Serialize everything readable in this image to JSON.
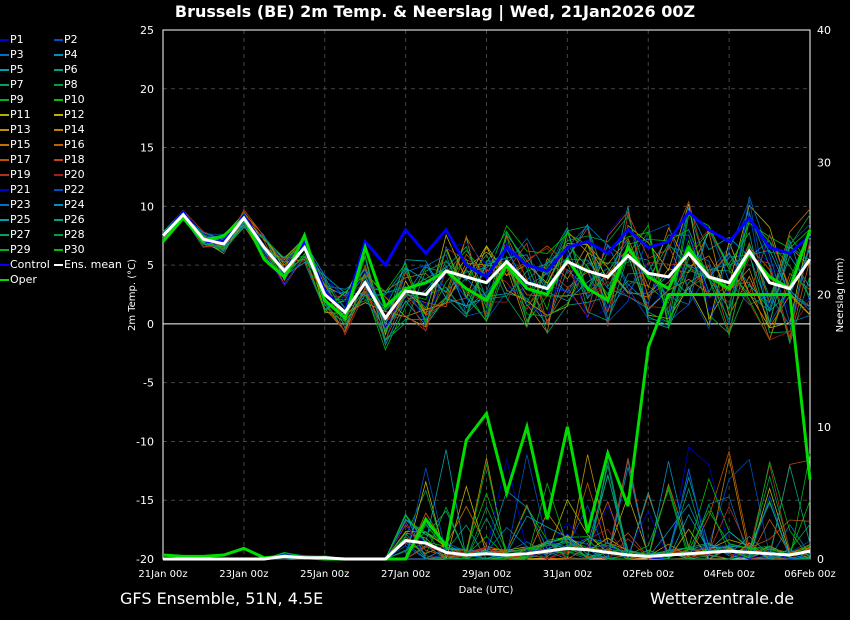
{
  "title": "Brussels  (BE)  2m Temp. & Neerslag | Wed, 21Jan2026 00Z",
  "source": "GFS Ensemble, 51N, 4.5E",
  "brand": "Wetterzentrale.de",
  "chart_data": {
    "type": "line",
    "title": "Brussels  (BE)  2m Temp. & Neerslag | Wed, 21Jan2026 00Z",
    "xlabel": "Date (UTC)",
    "ylabel": "2m Temp. (°C)",
    "y2label": "Neerslag (mm)",
    "ylim": [
      -20,
      25
    ],
    "y2lim": [
      0,
      40
    ],
    "grid": true,
    "legend": "left",
    "yticks": [
      "25",
      "20",
      "15",
      "10",
      "5",
      "0",
      "-5",
      "-10",
      "-15",
      "-20"
    ],
    "y2ticks": [
      "40",
      "30",
      "20",
      "10",
      "0"
    ],
    "xticks": [
      "21Jan 00z",
      "23Jan 00z",
      "25Jan 00z",
      "27Jan 00z",
      "29Jan 00z",
      "31Jan 00z",
      "02Feb 00z",
      "04Feb 00z",
      "06Feb 00z"
    ],
    "x_step_hours": 12,
    "ens_mean": [
      7.5,
      9.3,
      7.2,
      6.8,
      9.0,
      6.5,
      4.5,
      6.5,
      2.5,
      1.0,
      3.5,
      0.5,
      2.8,
      2.5,
      4.5,
      4.0,
      3.5,
      5.3,
      3.5,
      3.0,
      5.3,
      4.5,
      4.0,
      5.8,
      4.3,
      4.0,
      6.0,
      4.0,
      3.5,
      6.2,
      3.5,
      3.0,
      5.5
    ],
    "control": [
      7.5,
      9.5,
      7.0,
      7.0,
      9.2,
      6.5,
      4.5,
      7.0,
      2.8,
      1.0,
      7.0,
      5.0,
      8.0,
      6.0,
      8.0,
      5.0,
      4.0,
      6.5,
      5.0,
      4.5,
      6.5,
      7.0,
      6.0,
      8.0,
      6.5,
      7.0,
      9.5,
      8.0,
      7.0,
      9.0,
      6.5,
      6.0,
      7.5
    ],
    "oper": [
      7.0,
      9.0,
      7.0,
      7.5,
      9.0,
      5.5,
      4.0,
      7.5,
      2.0,
      0.5,
      6.5,
      1.5,
      3.0,
      3.5,
      4.5,
      3.0,
      2.0,
      5.0,
      3.0,
      2.5,
      5.5,
      3.0,
      2.0,
      6.5,
      4.0,
      3.0,
      6.5,
      4.0,
      3.0,
      6.0,
      4.0,
      3.0,
      8.0
    ],
    "spread": [
      0.5,
      0.6,
      1,
      1.2,
      1.2,
      1.5,
      1.8,
      2,
      2.5,
      3,
      3.5,
      4,
      4,
      4.5,
      4.5,
      5,
      5,
      5,
      5.5,
      5.5,
      5.5,
      6,
      6,
      6,
      6,
      6.5,
      6.5,
      6.5,
      6.5,
      7,
      7,
      7,
      7
    ],
    "precip_mean": [
      0,
      0,
      0,
      0,
      0,
      0,
      0.2,
      0.1,
      0.1,
      0,
      0,
      0,
      1.4,
      1.2,
      0.5,
      0.3,
      0.4,
      0.3,
      0.4,
      0.6,
      0.8,
      0.7,
      0.5,
      0.3,
      0.2,
      0.3,
      0.4,
      0.5,
      0.6,
      0.5,
      0.4,
      0.3,
      0.6
    ],
    "oper_precip": [
      0.3,
      0.2,
      0.2,
      0.3,
      0.8,
      0.1,
      0.2,
      0.1,
      0,
      0,
      0,
      0,
      0,
      3,
      1,
      9,
      11,
      5,
      10,
      3,
      10,
      2,
      8,
      4,
      16,
      20,
      20,
      20,
      20,
      20,
      20,
      20,
      6
    ],
    "series": [
      "P1",
      "P2",
      "P3",
      "P4",
      "P5",
      "P6",
      "P7",
      "P8",
      "P9",
      "P10",
      "P11",
      "P12",
      "P13",
      "P14",
      "P15",
      "P16",
      "P17",
      "P18",
      "P19",
      "P20",
      "P21",
      "P22",
      "P23",
      "P24",
      "P25",
      "P26",
      "P27",
      "P28",
      "P29",
      "P30",
      "Control",
      "Ens. mean",
      "Oper"
    ],
    "colors": [
      "#0000cc",
      "#0050c0",
      "#0070c0",
      "#0090c0",
      "#00a0b0",
      "#00a080",
      "#00a060",
      "#00a040",
      "#00b020",
      "#00c000",
      "#b0b000",
      "#c0b000",
      "#c09000",
      "#c08000",
      "#c07000",
      "#c06000",
      "#c05000",
      "#c04020",
      "#b03020",
      "#a02020",
      "#0000cc",
      "#0050c0",
      "#0070c0",
      "#0090c0",
      "#00a0b0",
      "#00a080",
      "#00a060",
      "#00a040",
      "#00b020",
      "#00c000",
      "#0000ff",
      "#ffffff",
      "#00dd00"
    ]
  }
}
